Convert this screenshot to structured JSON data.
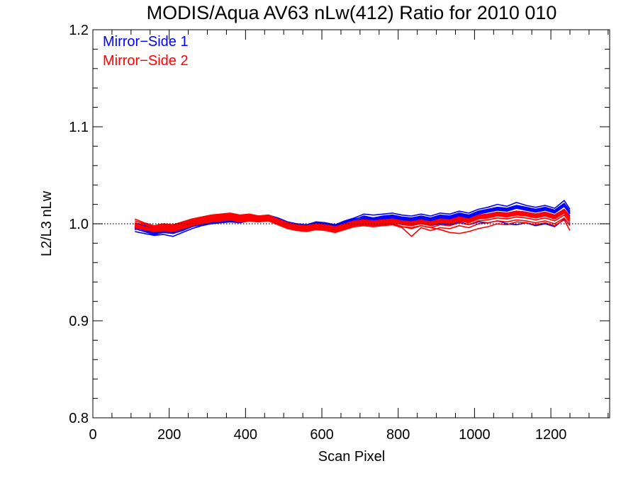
{
  "chart_data": {
    "type": "line",
    "title": "MODIS/Aqua AV63 nLw(412) Ratio for 2010 010",
    "xlabel": "Scan Pixel",
    "ylabel": "L2/L3 nLw",
    "xlim": [
      0,
      1354
    ],
    "ylim": [
      0.8,
      1.2
    ],
    "x_ticks": [
      0,
      200,
      400,
      600,
      800,
      1000,
      1200
    ],
    "x_tick_labels": [
      "0",
      "200",
      "400",
      "600",
      "800",
      "1000",
      "1200"
    ],
    "y_ticks": [
      0.8,
      0.9,
      1.0,
      1.1,
      1.2
    ],
    "y_tick_labels": [
      "0.8",
      "0.9",
      "1.0",
      "1.1",
      "1.2"
    ],
    "reference_line": 1.0,
    "legend_position": "top-left",
    "legend": [
      {
        "label": "Mirror−Side 1",
        "color": "#0000ff"
      },
      {
        "label": "Mirror−Side 2",
        "color": "#ff0000"
      }
    ],
    "x": [
      110,
      135,
      160,
      185,
      210,
      235,
      260,
      285,
      310,
      335,
      360,
      385,
      410,
      435,
      460,
      485,
      510,
      535,
      560,
      585,
      610,
      635,
      660,
      685,
      710,
      735,
      760,
      785,
      810,
      835,
      860,
      885,
      910,
      935,
      960,
      985,
      1010,
      1035,
      1060,
      1085,
      1110,
      1135,
      1160,
      1185,
      1210,
      1235,
      1250
    ],
    "series": [
      {
        "group": "Mirror−Side 1",
        "color": "#0000ff",
        "values": [
          0.994,
          0.996,
          0.993,
          0.995,
          0.994,
          0.996,
          1.0,
          1.002,
          1.004,
          1.005,
          1.006,
          1.005,
          1.007,
          1.006,
          1.008,
          1.004,
          1.0,
          0.998,
          0.997,
          1.0,
          0.999,
          0.997,
          1.001,
          1.004,
          1.008,
          1.006,
          1.007,
          1.008,
          1.006,
          1.005,
          1.007,
          1.005,
          1.008,
          1.007,
          1.01,
          1.008,
          1.012,
          1.014,
          1.016,
          1.015,
          1.018,
          1.016,
          1.014,
          1.016,
          1.013,
          1.02,
          1.012
        ]
      },
      {
        "group": "Mirror−Side 1",
        "color": "#0000ff",
        "values": [
          0.997,
          0.993,
          0.99,
          0.992,
          0.991,
          0.994,
          0.998,
          1.0,
          1.002,
          1.003,
          1.004,
          1.003,
          1.005,
          1.004,
          1.006,
          1.002,
          0.998,
          0.996,
          0.995,
          0.998,
          0.997,
          0.995,
          0.999,
          1.002,
          1.005,
          1.004,
          1.005,
          1.006,
          1.004,
          1.003,
          1.005,
          1.003,
          1.006,
          1.005,
          1.008,
          1.006,
          1.01,
          1.012,
          1.014,
          1.013,
          1.016,
          1.014,
          1.012,
          1.014,
          1.011,
          1.018,
          1.01
        ]
      },
      {
        "group": "Mirror−Side 1",
        "color": "#0000ff",
        "values": [
          1.0,
          0.998,
          0.996,
          0.997,
          0.996,
          0.999,
          1.002,
          1.004,
          1.006,
          1.007,
          1.008,
          1.007,
          1.009,
          1.008,
          1.009,
          1.006,
          1.002,
          1.0,
          0.999,
          1.002,
          1.001,
          0.999,
          1.003,
          1.006,
          1.01,
          1.009,
          1.01,
          1.011,
          1.009,
          1.008,
          1.01,
          1.008,
          1.011,
          1.01,
          1.013,
          1.011,
          1.015,
          1.017,
          1.02,
          1.018,
          1.022,
          1.019,
          1.017,
          1.019,
          1.016,
          1.024,
          1.015
        ]
      },
      {
        "group": "Mirror−Side 1",
        "color": "#0000ff",
        "values": [
          0.992,
          0.99,
          0.988,
          0.989,
          0.987,
          0.991,
          0.995,
          0.998,
          1.0,
          1.001,
          1.002,
          1.001,
          1.003,
          1.002,
          1.004,
          1.0,
          0.996,
          0.994,
          0.993,
          0.996,
          0.995,
          0.993,
          0.997,
          1.0,
          1.003,
          1.002,
          1.003,
          1.004,
          1.002,
          1.001,
          1.003,
          1.001,
          1.004,
          1.003,
          1.006,
          1.004,
          1.008,
          1.01,
          1.012,
          1.011,
          1.013,
          1.012,
          1.01,
          1.012,
          1.009,
          1.015,
          1.008
        ]
      },
      {
        "group": "Mirror−Side 1",
        "color": "#0000ff",
        "values": [
          0.998,
          0.995,
          0.992,
          0.994,
          0.993,
          0.997,
          1.001,
          1.003,
          1.005,
          1.006,
          1.007,
          1.006,
          1.008,
          1.007,
          1.008,
          1.005,
          1.001,
          0.999,
          0.998,
          1.001,
          1.0,
          0.998,
          1.002,
          1.005,
          1.007,
          1.006,
          1.008,
          1.009,
          1.007,
          1.006,
          1.008,
          1.006,
          1.009,
          1.008,
          1.011,
          1.009,
          1.013,
          1.015,
          1.017,
          1.016,
          1.019,
          1.017,
          1.015,
          1.017,
          1.014,
          1.021,
          1.013
        ]
      },
      {
        "group": "Mirror−Side 1",
        "color": "#0000ff",
        "values": [
          0.995,
          0.992,
          0.989,
          0.991,
          0.99,
          0.993,
          0.997,
          0.999,
          1.001,
          1.002,
          1.003,
          1.002,
          1.004,
          1.003,
          1.005,
          1.001,
          0.997,
          0.995,
          0.994,
          0.997,
          0.996,
          0.994,
          0.998,
          1.001,
          1.004,
          1.003,
          1.004,
          1.005,
          1.001,
          0.999,
          1.002,
          0.998,
          1.0,
          0.999,
          1.002,
          0.999,
          1.002,
          1.001,
          1.003,
          1.0,
          0.999,
          1.001,
          0.998,
          1.0,
          0.997,
          1.005,
          0.999
        ]
      },
      {
        "group": "Mirror−Side 1",
        "color": "#0000ff",
        "values": [
          0.996,
          0.994,
          0.991,
          0.993,
          0.992,
          0.995,
          0.999,
          1.001,
          1.003,
          1.004,
          1.005,
          1.004,
          1.006,
          1.005,
          1.006,
          1.003,
          0.999,
          0.997,
          0.996,
          0.999,
          0.998,
          0.996,
          1.0,
          1.003,
          1.006,
          1.005,
          1.006,
          1.007,
          1.005,
          1.004,
          1.006,
          1.004,
          1.007,
          1.006,
          1.009,
          1.007,
          1.011,
          1.013,
          1.015,
          1.014,
          1.017,
          1.015,
          1.013,
          1.015,
          1.012,
          1.019,
          1.011
        ]
      },
      {
        "group": "Mirror−Side 2",
        "color": "#ff0000",
        "values": [
          1.005,
          1.001,
          0.998,
          1.0,
          0.999,
          1.002,
          1.005,
          1.007,
          1.009,
          1.01,
          1.011,
          1.009,
          1.01,
          1.008,
          1.009,
          1.005,
          1.001,
          0.999,
          0.998,
          1.0,
          0.999,
          0.997,
          1.0,
          1.003,
          1.004,
          1.003,
          1.004,
          1.005,
          1.003,
          1.002,
          1.004,
          1.002,
          1.005,
          1.004,
          1.007,
          1.005,
          1.009,
          1.01,
          1.012,
          1.011,
          1.013,
          1.012,
          1.01,
          1.012,
          1.009,
          1.015,
          1.007
        ]
      },
      {
        "group": "Mirror−Side 2",
        "color": "#ff0000",
        "values": [
          1.0,
          0.997,
          0.995,
          0.997,
          0.996,
          0.999,
          1.002,
          1.004,
          1.006,
          1.007,
          1.008,
          1.006,
          1.007,
          1.006,
          1.007,
          1.003,
          0.999,
          0.997,
          0.996,
          0.998,
          0.997,
          0.995,
          0.998,
          1.001,
          1.002,
          1.001,
          1.002,
          1.003,
          1.0,
          0.999,
          1.001,
          0.999,
          1.002,
          1.001,
          1.004,
          1.002,
          1.006,
          1.007,
          1.009,
          1.008,
          1.01,
          1.009,
          1.007,
          1.009,
          1.006,
          1.012,
          1.004
        ]
      },
      {
        "group": "Mirror−Side 2",
        "color": "#ff0000",
        "values": [
          0.998,
          0.995,
          0.993,
          0.995,
          0.994,
          0.997,
          1.0,
          1.002,
          1.004,
          1.005,
          1.006,
          1.004,
          1.005,
          1.004,
          1.005,
          1.001,
          0.997,
          0.995,
          0.994,
          0.996,
          0.995,
          0.993,
          0.996,
          0.999,
          1.0,
          0.999,
          1.0,
          1.001,
          0.997,
          0.995,
          0.998,
          0.996,
          0.999,
          0.998,
          1.001,
          0.999,
          1.003,
          1.004,
          1.006,
          1.005,
          1.007,
          1.006,
          1.004,
          1.006,
          1.003,
          1.009,
          1.001
        ]
      },
      {
        "group": "Mirror−Side 2",
        "color": "#ff0000",
        "values": [
          1.003,
          1.0,
          0.997,
          0.999,
          0.998,
          1.001,
          1.004,
          1.006,
          1.008,
          1.009,
          1.01,
          1.008,
          1.009,
          1.007,
          1.008,
          1.004,
          1.0,
          0.998,
          0.997,
          0.999,
          0.998,
          0.996,
          0.999,
          1.002,
          1.003,
          1.002,
          1.003,
          1.004,
          1.002,
          1.001,
          1.003,
          1.001,
          1.004,
          1.003,
          1.006,
          1.004,
          1.008,
          1.009,
          1.011,
          1.01,
          1.012,
          1.011,
          1.009,
          1.011,
          1.008,
          1.014,
          1.006
        ]
      },
      {
        "group": "Mirror−Side 2",
        "color": "#ff0000",
        "values": [
          0.996,
          0.994,
          0.992,
          0.993,
          0.992,
          0.995,
          0.998,
          1.0,
          1.002,
          1.003,
          1.004,
          1.002,
          1.003,
          1.002,
          1.003,
          0.999,
          0.995,
          0.993,
          0.992,
          0.994,
          0.993,
          0.991,
          0.994,
          0.997,
          0.998,
          0.997,
          0.998,
          0.999,
          0.996,
          0.987,
          0.996,
          0.993,
          0.996,
          0.995,
          0.998,
          0.996,
          1.0,
          1.001,
          1.003,
          1.002,
          1.004,
          1.003,
          1.001,
          1.003,
          1.0,
          1.006,
          0.998
        ]
      },
      {
        "group": "Mirror−Side 2",
        "color": "#ff0000",
        "values": [
          1.001,
          0.999,
          0.996,
          0.998,
          0.997,
          1.0,
          1.003,
          1.005,
          1.007,
          1.008,
          1.009,
          1.007,
          1.008,
          1.007,
          1.008,
          1.004,
          1.0,
          0.998,
          0.997,
          0.999,
          0.998,
          0.996,
          0.999,
          1.002,
          1.003,
          1.002,
          1.003,
          1.004,
          1.001,
          1.0,
          1.002,
          1.0,
          1.003,
          1.002,
          1.005,
          1.003,
          1.007,
          1.008,
          1.01,
          1.009,
          1.011,
          1.01,
          1.008,
          1.01,
          1.007,
          1.013,
          1.005
        ]
      },
      {
        "group": "Mirror−Side 2",
        "color": "#ff0000",
        "values": [
          0.999,
          0.996,
          0.994,
          0.996,
          0.995,
          0.998,
          1.001,
          1.003,
          1.005,
          1.006,
          1.007,
          1.005,
          1.006,
          1.005,
          1.006,
          1.002,
          0.998,
          0.996,
          0.995,
          0.997,
          0.996,
          0.994,
          0.997,
          1.0,
          1.001,
          1.0,
          1.001,
          1.002,
          0.999,
          0.998,
          1.0,
          0.998,
          1.001,
          1.0,
          1.003,
          1.001,
          1.005,
          1.006,
          1.008,
          1.007,
          1.009,
          1.008,
          1.006,
          1.008,
          1.005,
          1.011,
          1.003
        ]
      },
      {
        "group": "Mirror−Side 2",
        "color": "#ff0000",
        "values": [
          0.997,
          0.995,
          0.993,
          0.994,
          0.993,
          0.996,
          0.999,
          1.001,
          1.003,
          1.004,
          1.005,
          1.003,
          1.004,
          1.003,
          1.004,
          1.0,
          0.996,
          0.994,
          0.993,
          0.995,
          0.994,
          0.992,
          0.995,
          0.998,
          0.999,
          0.998,
          0.999,
          1.0,
          0.997,
          0.996,
          0.998,
          0.996,
          0.994,
          0.991,
          0.99,
          0.992,
          0.995,
          0.997,
          1.0,
          0.999,
          1.002,
          1.001,
          0.999,
          1.001,
          0.998,
          1.004,
          0.993
        ]
      }
    ]
  }
}
